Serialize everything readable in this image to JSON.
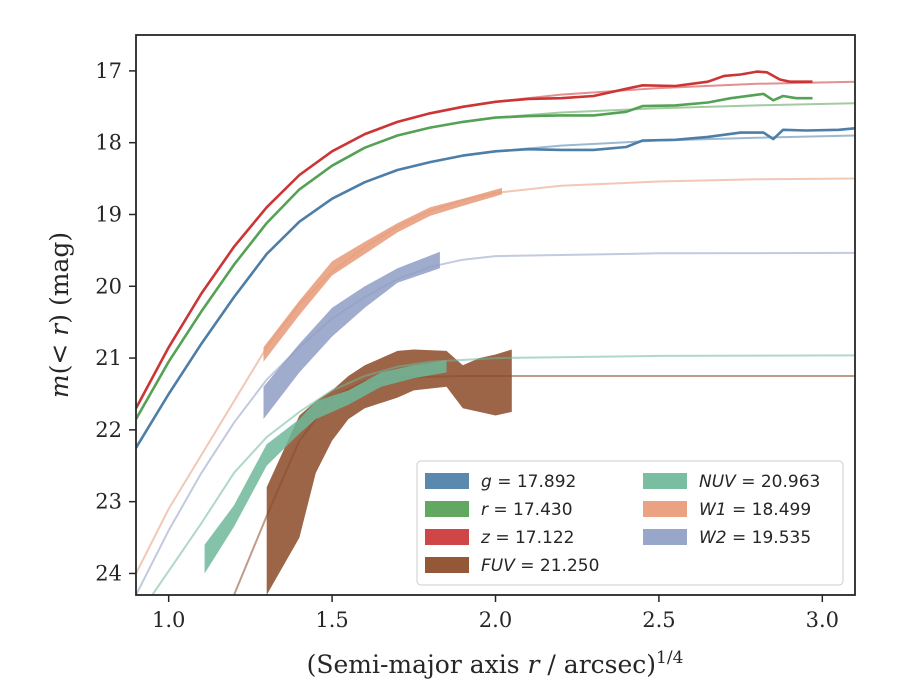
{
  "chart_data": {
    "type": "line",
    "xlabel": "(Semi-major axis r / arcsec)^1/4",
    "ylabel": "m(< r) (mag)",
    "xlim": [
      0.9,
      3.1
    ],
    "ylim": [
      24.3,
      16.5
    ],
    "y_inverted": true,
    "grid": false,
    "legend_position": "lower-right",
    "x_ticks": [
      "1.0",
      "1.5",
      "2.0",
      "2.5",
      "3.0"
    ],
    "y_ticks": [
      "17",
      "18",
      "19",
      "20",
      "21",
      "22",
      "23",
      "24"
    ],
    "legend": [
      {
        "label": "g = 17.892",
        "color": "#4c7ea8"
      },
      {
        "label": "r = 17.430",
        "color": "#55a155"
      },
      {
        "label": "z = 17.122",
        "color": "#cc3535"
      },
      {
        "label": "FUV = 21.250",
        "color": "#8b4a28"
      },
      {
        "label": "NUV = 20.963",
        "color": "#6fb89a"
      },
      {
        "label": "W1 = 18.499",
        "color": "#e89a78"
      },
      {
        "label": "W2 = 19.535",
        "color": "#8f9ec4"
      }
    ],
    "series": [
      {
        "name": "g = 17.892",
        "color": "#4c7ea8",
        "fit": [
          [
            0.9,
            22.25
          ],
          [
            1.0,
            21.5
          ],
          [
            1.1,
            20.8
          ],
          [
            1.2,
            20.15
          ],
          [
            1.3,
            19.55
          ],
          [
            1.4,
            19.1
          ],
          [
            1.5,
            18.78
          ],
          [
            1.6,
            18.55
          ],
          [
            1.7,
            18.38
          ],
          [
            1.8,
            18.27
          ],
          [
            1.9,
            18.18
          ],
          [
            2.0,
            18.12
          ],
          [
            2.2,
            18.04
          ],
          [
            2.5,
            17.97
          ],
          [
            2.8,
            17.93
          ],
          [
            3.1,
            17.9
          ]
        ],
        "data": [
          [
            0.9,
            22.25
          ],
          [
            1.0,
            21.5
          ],
          [
            1.1,
            20.8
          ],
          [
            1.2,
            20.15
          ],
          [
            1.3,
            19.55
          ],
          [
            1.4,
            19.1
          ],
          [
            1.5,
            18.78
          ],
          [
            1.6,
            18.55
          ],
          [
            1.7,
            18.38
          ],
          [
            1.8,
            18.27
          ],
          [
            1.9,
            18.18
          ],
          [
            2.0,
            18.12
          ],
          [
            2.1,
            18.09
          ],
          [
            2.2,
            18.1
          ],
          [
            2.3,
            18.1
          ],
          [
            2.4,
            18.06
          ],
          [
            2.45,
            17.97
          ],
          [
            2.55,
            17.96
          ],
          [
            2.65,
            17.92
          ],
          [
            2.75,
            17.86
          ],
          [
            2.82,
            17.86
          ],
          [
            2.85,
            17.95
          ],
          [
            2.88,
            17.82
          ],
          [
            2.95,
            17.83
          ],
          [
            3.05,
            17.82
          ],
          [
            3.1,
            17.8
          ]
        ]
      },
      {
        "name": "r = 17.430",
        "color": "#55a155",
        "fit": [
          [
            0.9,
            21.85
          ],
          [
            1.0,
            21.05
          ],
          [
            1.1,
            20.35
          ],
          [
            1.2,
            19.7
          ],
          [
            1.3,
            19.12
          ],
          [
            1.4,
            18.65
          ],
          [
            1.5,
            18.32
          ],
          [
            1.6,
            18.07
          ],
          [
            1.7,
            17.9
          ],
          [
            1.8,
            17.79
          ],
          [
            1.9,
            17.71
          ],
          [
            2.0,
            17.65
          ],
          [
            2.2,
            17.58
          ],
          [
            2.5,
            17.52
          ],
          [
            2.8,
            17.48
          ],
          [
            3.1,
            17.45
          ]
        ],
        "data": [
          [
            0.9,
            21.85
          ],
          [
            1.0,
            21.05
          ],
          [
            1.1,
            20.35
          ],
          [
            1.2,
            19.7
          ],
          [
            1.3,
            19.12
          ],
          [
            1.4,
            18.65
          ],
          [
            1.5,
            18.32
          ],
          [
            1.6,
            18.07
          ],
          [
            1.7,
            17.9
          ],
          [
            1.8,
            17.79
          ],
          [
            1.9,
            17.71
          ],
          [
            2.0,
            17.65
          ],
          [
            2.1,
            17.63
          ],
          [
            2.2,
            17.62
          ],
          [
            2.3,
            17.62
          ],
          [
            2.4,
            17.57
          ],
          [
            2.45,
            17.49
          ],
          [
            2.55,
            17.48
          ],
          [
            2.65,
            17.44
          ],
          [
            2.72,
            17.38
          ],
          [
            2.82,
            17.32
          ],
          [
            2.85,
            17.41
          ],
          [
            2.88,
            17.35
          ],
          [
            2.92,
            17.38
          ],
          [
            2.97,
            17.38
          ]
        ]
      },
      {
        "name": "z = 17.122",
        "color": "#cc3535",
        "fit": [
          [
            0.9,
            21.7
          ],
          [
            1.0,
            20.85
          ],
          [
            1.1,
            20.1
          ],
          [
            1.2,
            19.45
          ],
          [
            1.3,
            18.9
          ],
          [
            1.4,
            18.45
          ],
          [
            1.5,
            18.12
          ],
          [
            1.6,
            17.88
          ],
          [
            1.7,
            17.71
          ],
          [
            1.8,
            17.59
          ],
          [
            1.9,
            17.5
          ],
          [
            2.0,
            17.43
          ],
          [
            2.2,
            17.33
          ],
          [
            2.5,
            17.24
          ],
          [
            2.8,
            17.18
          ],
          [
            3.1,
            17.15
          ]
        ],
        "data": [
          [
            0.9,
            21.7
          ],
          [
            1.0,
            20.85
          ],
          [
            1.1,
            20.1
          ],
          [
            1.2,
            19.45
          ],
          [
            1.3,
            18.9
          ],
          [
            1.4,
            18.45
          ],
          [
            1.5,
            18.12
          ],
          [
            1.6,
            17.88
          ],
          [
            1.7,
            17.71
          ],
          [
            1.8,
            17.59
          ],
          [
            1.9,
            17.5
          ],
          [
            2.0,
            17.43
          ],
          [
            2.1,
            17.39
          ],
          [
            2.2,
            17.38
          ],
          [
            2.3,
            17.35
          ],
          [
            2.4,
            17.25
          ],
          [
            2.45,
            17.2
          ],
          [
            2.55,
            17.21
          ],
          [
            2.65,
            17.15
          ],
          [
            2.7,
            17.07
          ],
          [
            2.75,
            17.05
          ],
          [
            2.8,
            17.01
          ],
          [
            2.83,
            17.02
          ],
          [
            2.87,
            17.12
          ],
          [
            2.9,
            17.15
          ],
          [
            2.97,
            17.15
          ]
        ]
      },
      {
        "name": "FUV = 21.250",
        "color": "#8b4a28",
        "fit": [
          [
            1.2,
            24.3
          ],
          [
            1.3,
            23.2
          ],
          [
            1.4,
            22.15
          ],
          [
            1.5,
            21.55
          ],
          [
            1.6,
            21.32
          ],
          [
            1.7,
            21.27
          ],
          [
            1.9,
            21.25
          ],
          [
            3.1,
            21.25
          ]
        ],
        "band": [
          [
            1.3,
            22.8,
            24.3
          ],
          [
            1.4,
            21.8,
            23.5
          ],
          [
            1.45,
            21.6,
            22.6
          ],
          [
            1.5,
            21.45,
            22.15
          ],
          [
            1.55,
            21.25,
            21.85
          ],
          [
            1.6,
            21.1,
            21.7
          ],
          [
            1.7,
            20.9,
            21.55
          ],
          [
            1.75,
            20.88,
            21.45
          ],
          [
            1.85,
            20.9,
            21.4
          ],
          [
            1.9,
            21.1,
            21.7
          ],
          [
            1.95,
            21.0,
            21.75
          ],
          [
            2.0,
            20.95,
            21.8
          ],
          [
            2.05,
            20.88,
            21.75
          ]
        ]
      },
      {
        "name": "NUV = 20.963",
        "color": "#6fb89a",
        "fit": [
          [
            0.95,
            24.3
          ],
          [
            1.1,
            23.3
          ],
          [
            1.2,
            22.6
          ],
          [
            1.3,
            22.1
          ],
          [
            1.4,
            21.75
          ],
          [
            1.5,
            21.45
          ],
          [
            1.6,
            21.25
          ],
          [
            1.7,
            21.12
          ],
          [
            1.8,
            21.05
          ],
          [
            2.0,
            21.0
          ],
          [
            2.5,
            20.97
          ],
          [
            3.1,
            20.963
          ]
        ],
        "band": [
          [
            1.11,
            23.6,
            24.0
          ],
          [
            1.2,
            23.05,
            23.35
          ],
          [
            1.3,
            22.2,
            22.5
          ],
          [
            1.4,
            21.85,
            22.05
          ],
          [
            1.45,
            21.6,
            21.85
          ],
          [
            1.55,
            21.45,
            21.65
          ],
          [
            1.65,
            21.2,
            21.4
          ],
          [
            1.75,
            21.1,
            21.28
          ],
          [
            1.85,
            21.03,
            21.2
          ]
        ]
      },
      {
        "name": "W1 = 18.499",
        "color": "#e89a78",
        "fit": [
          [
            0.9,
            24.0
          ],
          [
            1.0,
            23.1
          ],
          [
            1.1,
            22.35
          ],
          [
            1.2,
            21.6
          ],
          [
            1.3,
            20.85
          ],
          [
            1.4,
            20.25
          ],
          [
            1.5,
            19.8
          ],
          [
            1.6,
            19.45
          ],
          [
            1.7,
            19.17
          ],
          [
            1.8,
            18.95
          ],
          [
            1.9,
            18.8
          ],
          [
            2.0,
            18.7
          ],
          [
            2.2,
            18.6
          ],
          [
            2.5,
            18.54
          ],
          [
            2.8,
            18.51
          ],
          [
            3.1,
            18.499
          ]
        ],
        "band": [
          [
            1.29,
            20.85,
            21.05
          ],
          [
            1.4,
            20.2,
            20.4
          ],
          [
            1.5,
            19.65,
            19.85
          ],
          [
            1.6,
            19.38,
            19.55
          ],
          [
            1.7,
            19.12,
            19.25
          ],
          [
            1.8,
            18.9,
            19.02
          ],
          [
            1.9,
            18.78,
            18.88
          ],
          [
            2.02,
            18.63,
            18.72
          ]
        ]
      },
      {
        "name": "W2 = 19.535",
        "color": "#8f9ec4",
        "fit": [
          [
            0.9,
            24.3
          ],
          [
            1.0,
            23.4
          ],
          [
            1.1,
            22.6
          ],
          [
            1.2,
            21.9
          ],
          [
            1.3,
            21.3
          ],
          [
            1.4,
            20.85
          ],
          [
            1.5,
            20.45
          ],
          [
            1.6,
            20.15
          ],
          [
            1.7,
            19.9
          ],
          [
            1.8,
            19.73
          ],
          [
            1.9,
            19.63
          ],
          [
            2.0,
            19.58
          ],
          [
            2.5,
            19.54
          ],
          [
            3.1,
            19.535
          ]
        ],
        "band": [
          [
            1.29,
            21.4,
            21.85
          ],
          [
            1.4,
            20.8,
            21.2
          ],
          [
            1.5,
            20.3,
            20.7
          ],
          [
            1.6,
            20.0,
            20.3
          ],
          [
            1.7,
            19.75,
            19.95
          ],
          [
            1.83,
            19.52,
            19.75
          ]
        ]
      }
    ]
  }
}
